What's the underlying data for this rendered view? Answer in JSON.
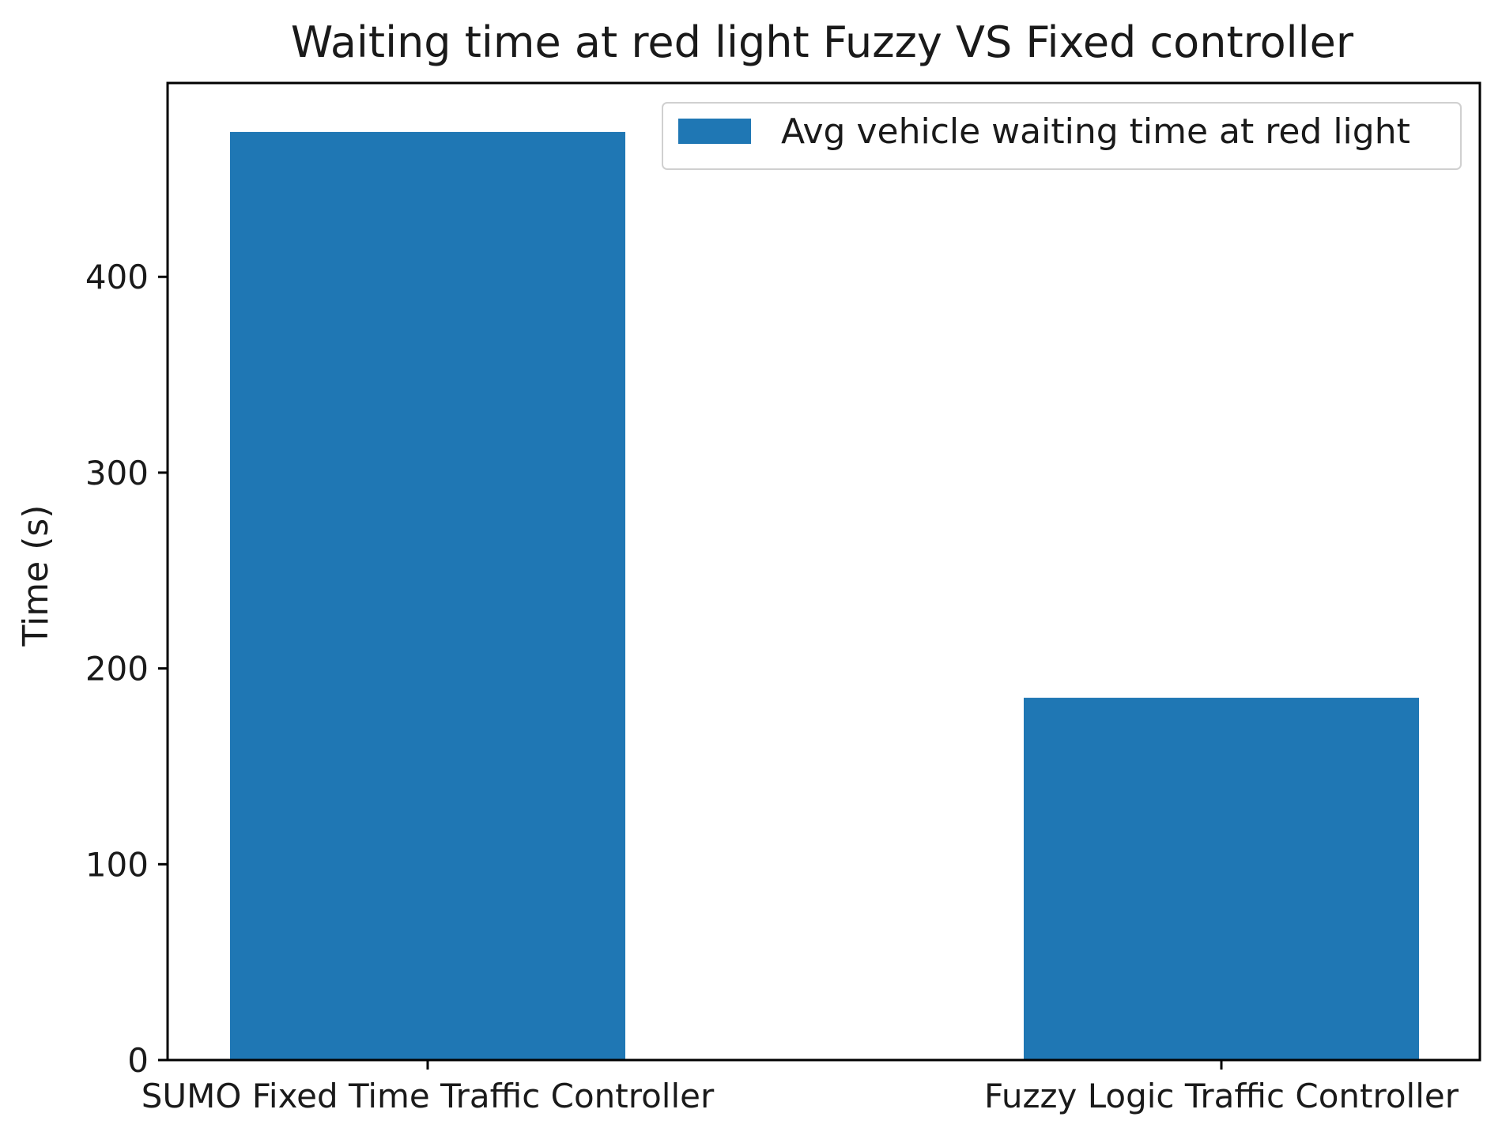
{
  "chart_data": {
    "type": "bar",
    "title": "Waiting time at red light Fuzzy VS Fixed controller",
    "xlabel": "",
    "ylabel": "Time (s)",
    "categories": [
      "SUMO Fixed Time Traffic Controller",
      "Fuzzy Logic Traffic Controller"
    ],
    "series": [
      {
        "name": "Avg vehicle waiting time at red light",
        "values": [
          474,
          185
        ],
        "color": "#1f77b4"
      }
    ],
    "ylim": [
      0,
      499
    ],
    "yticks": [
      0,
      100,
      200,
      300,
      400
    ],
    "legend_position": "top-right",
    "grid": false
  }
}
